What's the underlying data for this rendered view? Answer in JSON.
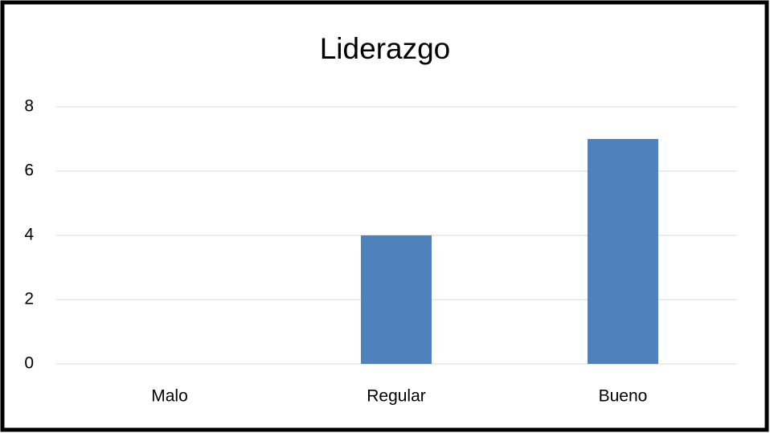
{
  "chart_data": {
    "type": "bar",
    "title": "Liderazgo",
    "categories": [
      "Malo",
      "Regular",
      "Bueno"
    ],
    "values": [
      0,
      4,
      7
    ],
    "color": "#4f81bd",
    "ylim": [
      0,
      8
    ],
    "yticks": [
      0,
      2,
      4,
      6,
      8
    ],
    "grid": true
  }
}
